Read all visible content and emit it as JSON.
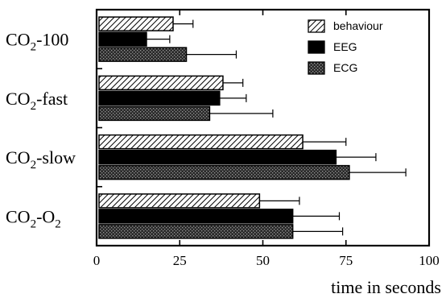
{
  "chart_data": {
    "type": "bar",
    "orientation": "horizontal",
    "categories": [
      {
        "main": "CO",
        "sub": "2",
        "rest": "-100"
      },
      {
        "main": "CO",
        "sub": "2",
        "rest": "-fast"
      },
      {
        "main": "CO",
        "sub": "2",
        "rest": "-slow"
      },
      {
        "main": "CO",
        "sub": "2",
        "rest": "-O",
        "sub2": "2"
      }
    ],
    "series": [
      {
        "name": "behaviour",
        "pattern": "hatch",
        "values": [
          23,
          38,
          62,
          49
        ],
        "errors": [
          6,
          6,
          13,
          12
        ]
      },
      {
        "name": "EEG",
        "pattern": "solid",
        "values": [
          15,
          37,
          72,
          59
        ],
        "errors": [
          7,
          8,
          12,
          14
        ]
      },
      {
        "name": "ECG",
        "pattern": "stipple",
        "values": [
          27,
          34,
          76,
          59
        ],
        "errors": [
          15,
          19,
          17,
          15
        ]
      }
    ],
    "xlim": [
      0,
      100
    ],
    "xticks": [
      "0",
      "25",
      "50",
      "75",
      "100"
    ],
    "xlabel": "time in seconds",
    "legend_position": "top-right",
    "grid": false
  }
}
